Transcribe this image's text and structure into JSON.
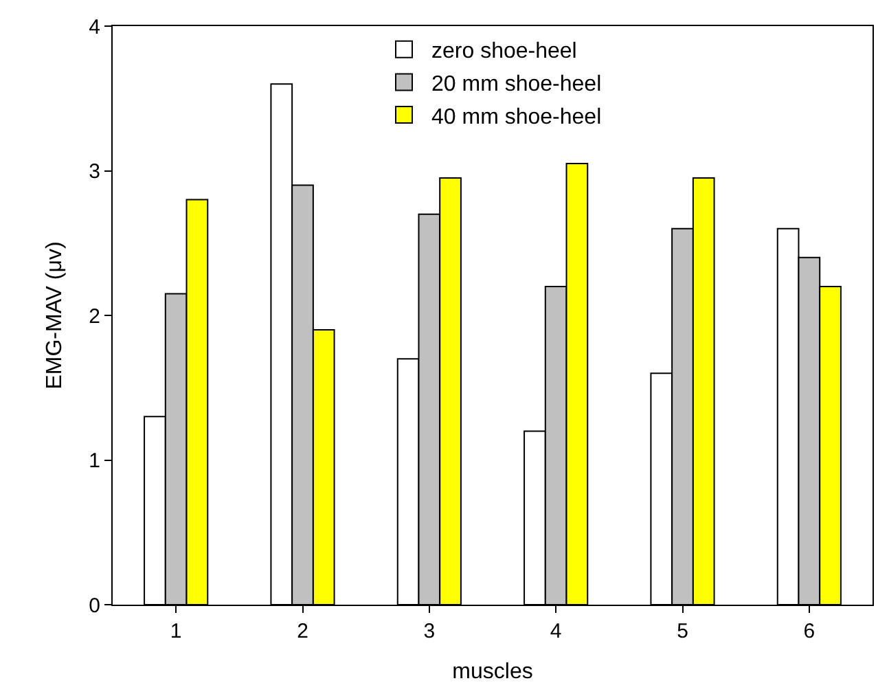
{
  "chart_data": {
    "type": "bar",
    "xlabel": "muscles",
    "ylabel": "EMG-MAV (μv)",
    "categories": [
      "1",
      "2",
      "3",
      "4",
      "5",
      "6"
    ],
    "series": [
      {
        "name": "zero shoe-heel",
        "color": "#ffffff",
        "values": [
          1.3,
          3.6,
          1.7,
          1.2,
          1.6,
          2.6
        ]
      },
      {
        "name": "20 mm shoe-heel",
        "color": "#c0c0c0",
        "values": [
          2.15,
          2.9,
          2.7,
          2.2,
          2.6,
          2.4
        ]
      },
      {
        "name": "40 mm shoe-heel",
        "color": "#ffff00",
        "values": [
          2.8,
          1.9,
          2.95,
          3.05,
          2.95,
          2.2
        ]
      }
    ],
    "ylim": [
      0,
      4
    ],
    "yticks": [
      0,
      1,
      2,
      3,
      4
    ],
    "legend": "top"
  }
}
